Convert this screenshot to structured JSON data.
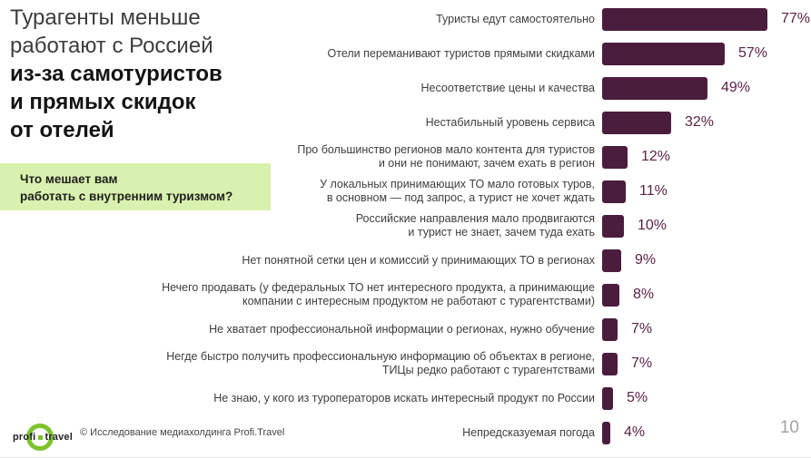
{
  "slide": {
    "title_regular": "Турагенты меньше\nработают с Россией",
    "title_bold": "из-за самотуристов\nи прямых скидок\nот отелей",
    "question": "Что мешает вам\nработать с внутренним туризмом?",
    "page_number": "10",
    "footer": {
      "logo_left": "profi",
      "logo_right": "travel",
      "copyright": "© Исследование медиахолдинга Profi.Travel"
    },
    "accent_green": "#d9f1ae",
    "logo_green": "#7dc32e"
  },
  "chart_data": {
    "type": "bar",
    "orientation": "horizontal",
    "title": "Что мешает вам работать с внутренним туризмом?",
    "unit": "%",
    "bar_color": "#4a1d3d",
    "value_label_color": "#5c2246",
    "xlim": [
      0,
      77
    ],
    "grid": false,
    "legend": "none",
    "categories": [
      "Туристы едут самостоятельно",
      "Отели переманивают туристов прямыми скидками",
      "Несоответствие цены и качества",
      "Нестабильный уровень сервиса",
      "Про большинство регионов мало контента для туристов\nи они не понимают, зачем ехать в регион",
      "У локальных принимающих ТО мало готовых туров,\nв основном — под запрос, а турист не хочет ждать",
      "Российские направления мало продвигаются\nи турист не знает, зачем туда ехать",
      "Нет понятной сетки цен и комиссий у принимающих ТО в регионах",
      "Нечего продавать (у федеральных ТО нет интересного продукта, а принимающие\nкомпании с интересным продуктом не работают с турагентствами)",
      "Не хватает профессиональной информации о регионах, нужно обучение",
      "Негде быстро получить профессиональную информацию об объектах в регионе,\nТИЦы редко работают с турагентствами",
      "Не знаю, у кого из туроператоров искать интересный продукт по России",
      "Непредсказуемая погода"
    ],
    "values": [
      77,
      57,
      49,
      32,
      12,
      11,
      10,
      9,
      8,
      7,
      7,
      5,
      4
    ]
  }
}
